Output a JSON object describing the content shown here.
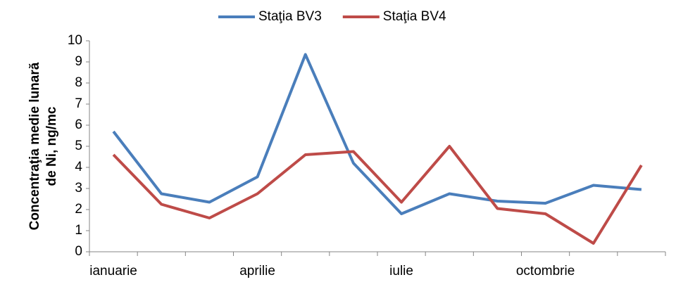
{
  "chart_data": {
    "type": "line",
    "y_label": [
      "Concentraţia medie lunară",
      "de Ni, ng/mc"
    ],
    "categories": [
      "ianuarie",
      null,
      null,
      "aprilie",
      null,
      null,
      "iulie",
      null,
      null,
      "octombrie",
      null,
      null
    ],
    "series": [
      {
        "name": "Staţia BV3",
        "color": "#4a7ebb",
        "values": [
          5.7,
          2.75,
          2.35,
          3.55,
          9.35,
          4.2,
          1.8,
          2.75,
          2.4,
          2.3,
          3.15,
          2.95
        ]
      },
      {
        "name": "Staţia BV4",
        "color": "#be4b48",
        "values": [
          4.6,
          2.25,
          1.6,
          2.75,
          4.6,
          4.75,
          2.35,
          5.0,
          2.05,
          1.8,
          0.4,
          4.1
        ]
      }
    ],
    "ylim": [
      0,
      10
    ],
    "yticks": [
      0,
      1,
      2,
      3,
      4,
      5,
      6,
      7,
      8,
      9,
      10
    ],
    "grid": false,
    "legend": "top"
  }
}
